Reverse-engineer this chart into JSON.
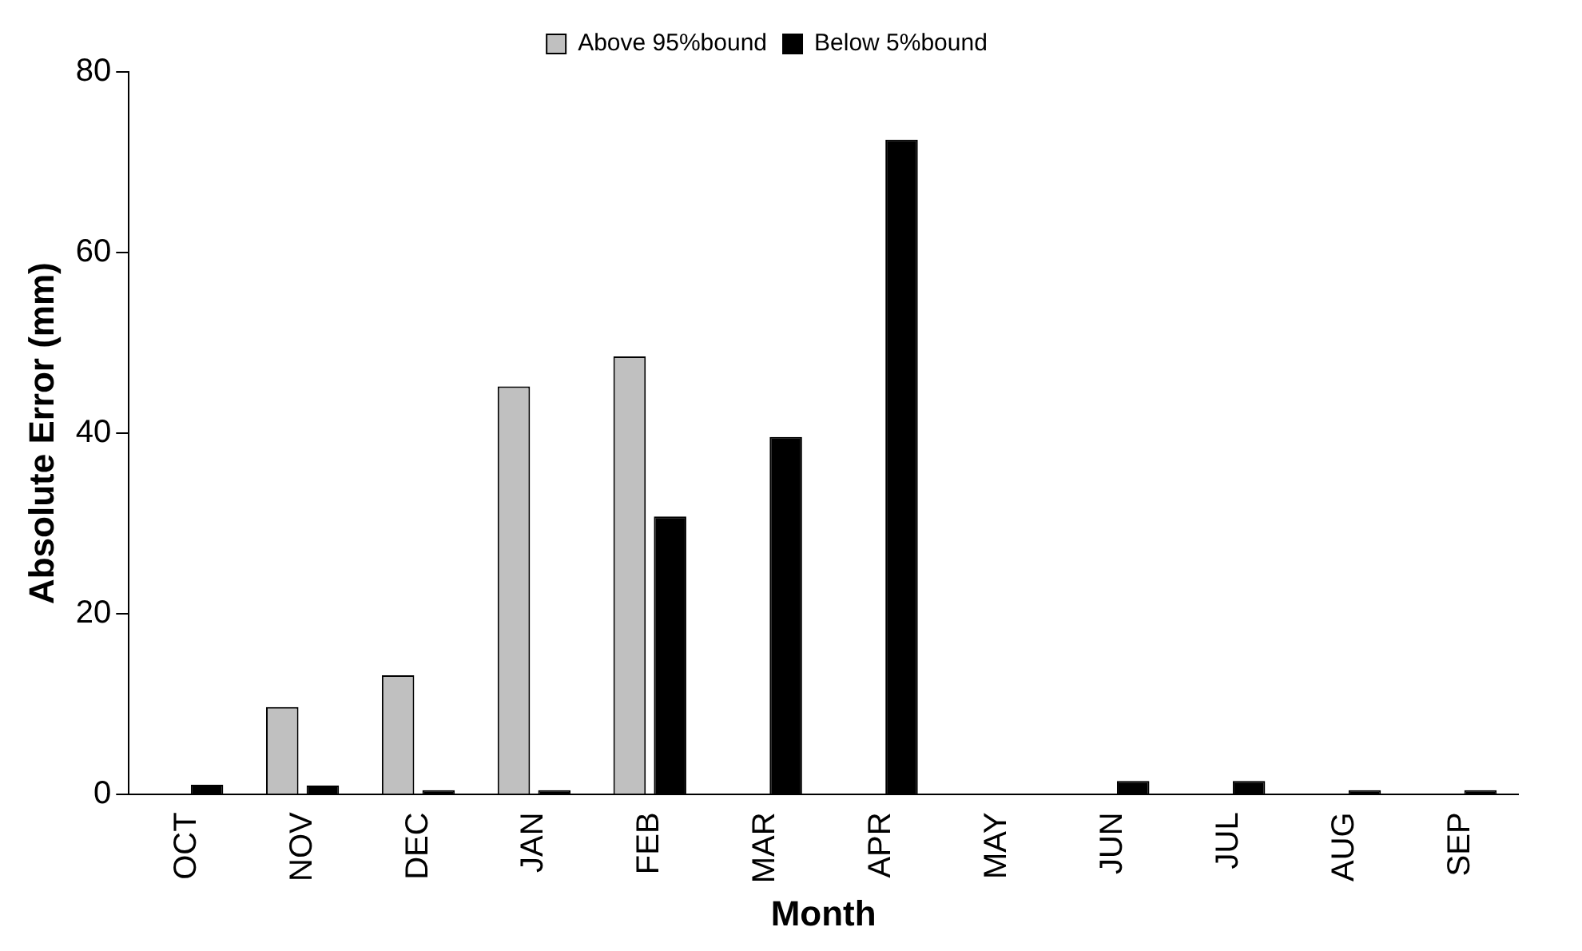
{
  "chart_data": {
    "type": "bar",
    "xlabel": "Month",
    "ylabel": "Absolute Error (mm)",
    "categories": [
      "OCT",
      "NOV",
      "DEC",
      "JAN",
      "FEB",
      "MAR",
      "APR",
      "MAY",
      "JUN",
      "JUL",
      "AUG",
      "SEP"
    ],
    "series": [
      {
        "name": "Above 95%bound",
        "color": "#c0c0c0",
        "values": [
          0,
          9.7,
          13.2,
          45.2,
          48.5,
          0,
          0,
          0,
          0,
          0,
          0,
          0
        ]
      },
      {
        "name": "Below 5%bound",
        "color": "#000000",
        "values": [
          1.1,
          1,
          0.5,
          0.5,
          30.8,
          39.6,
          72.5,
          0,
          1.5,
          1.5,
          0.5,
          0.5
        ]
      }
    ],
    "ylim": [
      0,
      80
    ],
    "yticks": [
      0,
      20,
      40,
      60,
      80
    ],
    "grid": false,
    "legend": "top"
  }
}
